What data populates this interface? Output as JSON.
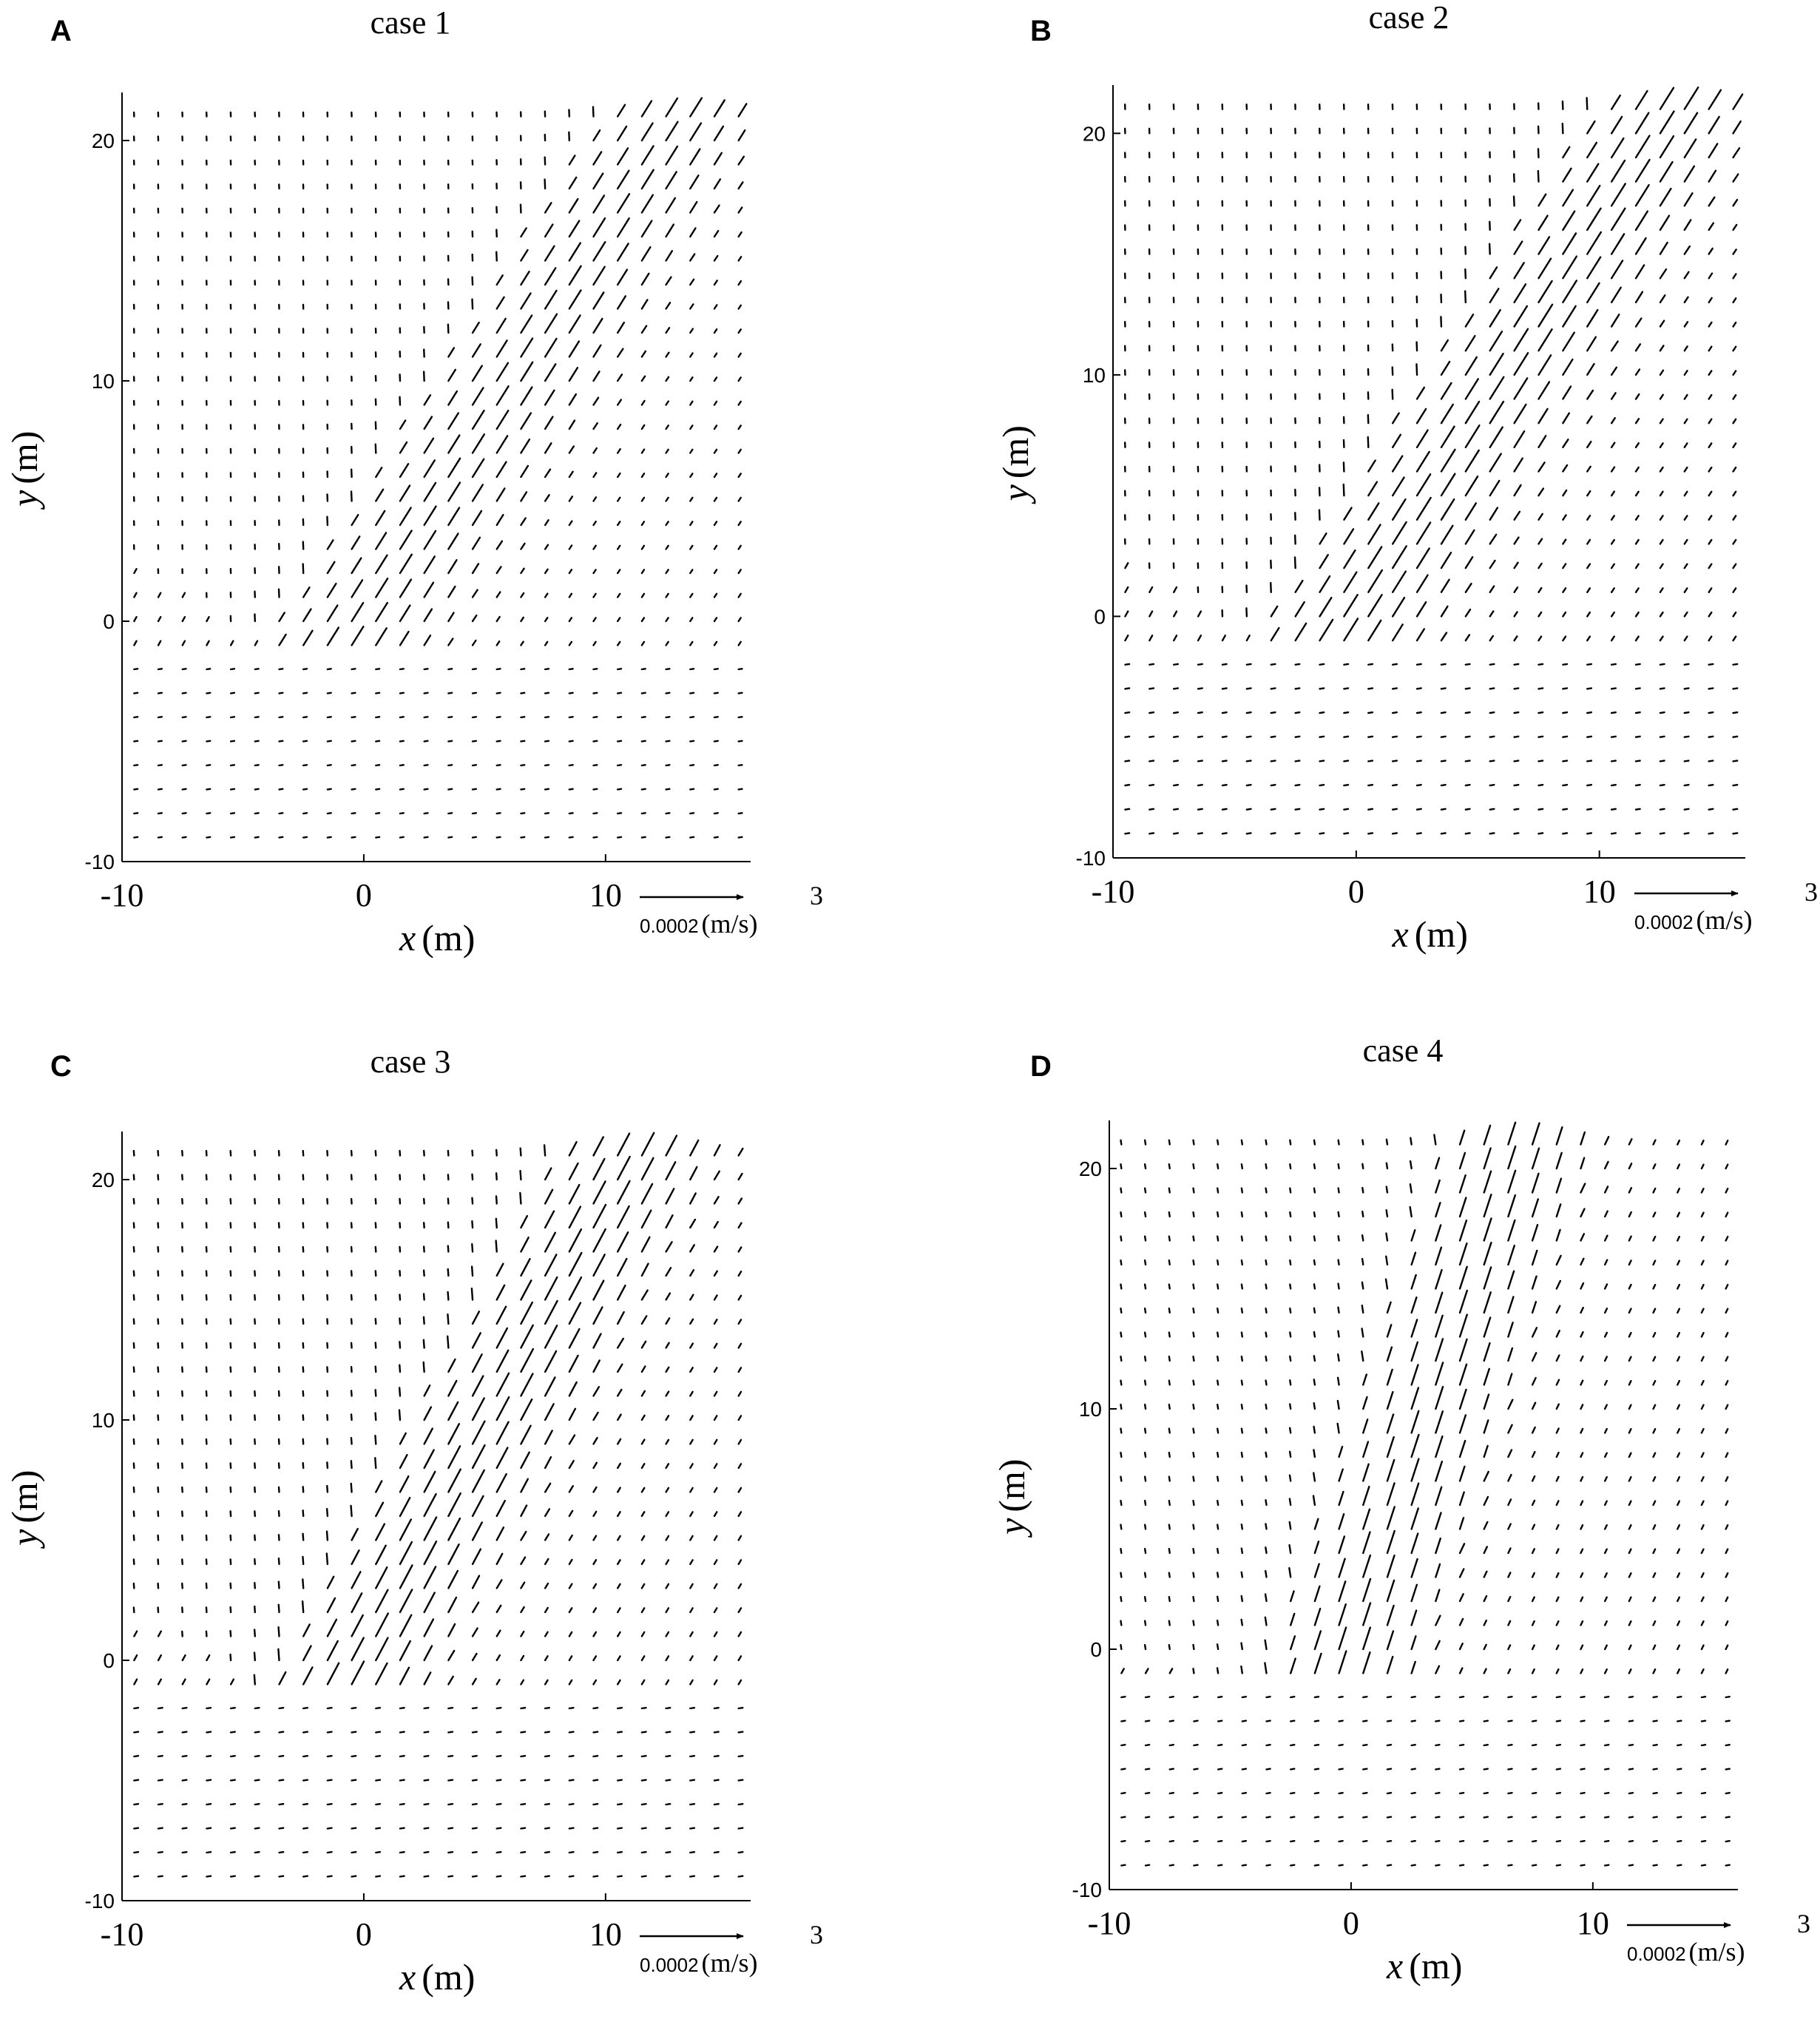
{
  "chart_data": [
    {
      "type": "quiver",
      "panel": "A",
      "title": "case 1",
      "xlabel": "x",
      "xunit": "(m)",
      "ylabel": "y",
      "yunit": "(m)",
      "xlim": [
        -10,
        16
      ],
      "ylim": [
        -10,
        22
      ],
      "xticks": [
        "-10",
        "0",
        "10"
      ],
      "yticks": [
        "-10",
        "0",
        "10",
        "20"
      ],
      "scale_value": "0.0002",
      "scale_unit": "(m/s)",
      "scale_exp": "3",
      "band_angle_deg": 58,
      "field_strength": 0.85
    },
    {
      "type": "quiver",
      "panel": "B",
      "title": "case 2",
      "xlabel": "x",
      "xunit": "(m)",
      "ylabel": "y",
      "yunit": "(m)",
      "xlim": [
        -10,
        16
      ],
      "ylim": [
        -10,
        22
      ],
      "xticks": [
        "-10",
        "0",
        "10"
      ],
      "yticks": [
        "-10",
        "0",
        "10",
        "20"
      ],
      "scale_value": "0.0002",
      "scale_unit": "(m/s)",
      "scale_exp": "3",
      "band_angle_deg": 58,
      "field_strength": 1.0
    },
    {
      "type": "quiver",
      "panel": "C",
      "title": "case 3",
      "xlabel": "x",
      "xunit": "(m)",
      "ylabel": "y",
      "yunit": "(m)",
      "xlim": [
        -10,
        16
      ],
      "ylim": [
        -10,
        22
      ],
      "xticks": [
        "-10",
        "0",
        "10"
      ],
      "yticks": [
        "-10",
        "0",
        "10",
        "20"
      ],
      "scale_value": "0.0002",
      "scale_unit": "(m/s)",
      "scale_exp": "3",
      "band_angle_deg": 62,
      "field_strength": 1.0
    },
    {
      "type": "quiver",
      "panel": "D",
      "title": "case 4",
      "xlabel": "x",
      "xunit": "(m)",
      "ylabel": "y",
      "yunit": "(m)",
      "xlim": [
        -10,
        16
      ],
      "ylim": [
        -10,
        22
      ],
      "xticks": [
        "-10",
        "0",
        "10"
      ],
      "yticks": [
        "-10",
        "0",
        "10",
        "20"
      ],
      "scale_value": "0.0002",
      "scale_unit": "(m/s)",
      "scale_exp": "3",
      "band_angle_deg": 72,
      "field_strength": 0.9
    }
  ]
}
